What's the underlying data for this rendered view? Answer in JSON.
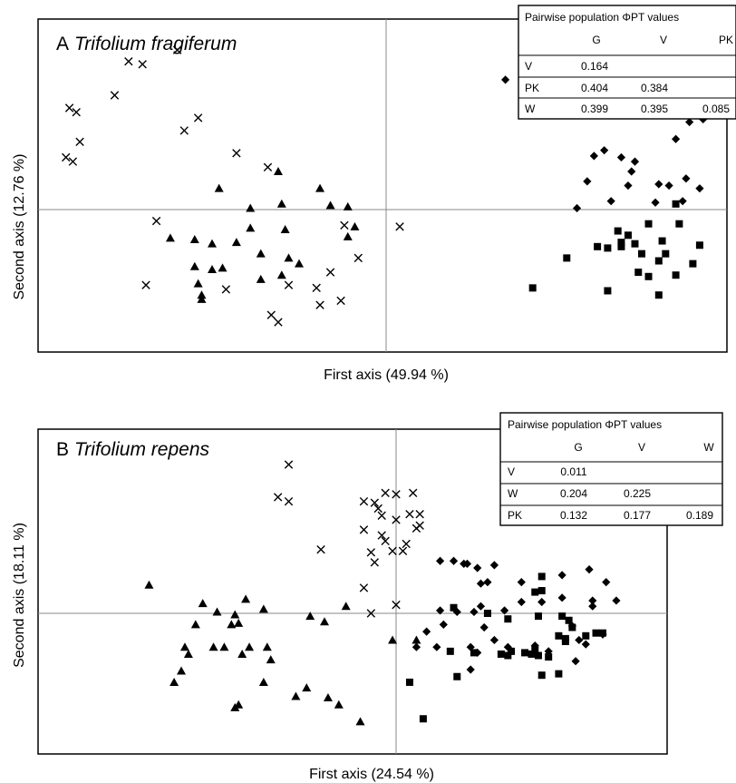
{
  "chart_data": [
    {
      "type": "scatter",
      "panel_letter": "A",
      "title": "Trifolium fragiferum",
      "xlabel": "First axis (49.94 %)",
      "ylabel": "Second axis (12.76 %)",
      "xlim": [
        -1.0,
        1.0
      ],
      "ylim": [
        -1.0,
        1.35
      ],
      "axes_cross_at_origin": true,
      "series": [
        {
          "marker": "cross",
          "points": [
            [
              -0.6,
              1.13
            ],
            [
              -0.74,
              1.05
            ],
            [
              -0.7,
              1.03
            ],
            [
              -0.78,
              0.81
            ],
            [
              -0.91,
              0.72
            ],
            [
              -0.89,
              0.69
            ],
            [
              -0.54,
              0.65
            ],
            [
              -0.58,
              0.56
            ],
            [
              -0.88,
              0.48
            ],
            [
              -0.92,
              0.37
            ],
            [
              -0.9,
              0.34
            ],
            [
              -0.43,
              0.4
            ],
            [
              -0.34,
              0.3
            ],
            [
              -0.66,
              -0.08
            ],
            [
              -0.12,
              -0.11
            ],
            [
              0.04,
              -0.12
            ],
            [
              -0.69,
              -0.53
            ],
            [
              -0.46,
              -0.56
            ],
            [
              -0.28,
              -0.53
            ],
            [
              -0.2,
              -0.55
            ],
            [
              -0.19,
              -0.67
            ],
            [
              -0.13,
              -0.64
            ],
            [
              -0.33,
              -0.74
            ],
            [
              -0.31,
              -0.79
            ],
            [
              -0.08,
              -0.34
            ],
            [
              -0.16,
              -0.44
            ]
          ]
        },
        {
          "marker": "triangle",
          "points": [
            [
              -0.31,
              0.27
            ],
            [
              -0.48,
              0.15
            ],
            [
              -0.19,
              0.15
            ],
            [
              -0.16,
              0.03
            ],
            [
              -0.39,
              0.01
            ],
            [
              -0.3,
              0.04
            ],
            [
              -0.11,
              0.02
            ],
            [
              -0.09,
              -0.12
            ],
            [
              -0.39,
              -0.13
            ],
            [
              -0.29,
              -0.14
            ],
            [
              -0.11,
              -0.19
            ],
            [
              -0.43,
              -0.23
            ],
            [
              -0.62,
              -0.2
            ],
            [
              -0.55,
              -0.21
            ],
            [
              -0.5,
              -0.24
            ],
            [
              -0.36,
              -0.31
            ],
            [
              -0.28,
              -0.34
            ],
            [
              -0.25,
              -0.38
            ],
            [
              -0.55,
              -0.4
            ],
            [
              -0.5,
              -0.42
            ],
            [
              -0.47,
              -0.41
            ],
            [
              -0.54,
              -0.52
            ],
            [
              -0.53,
              -0.63
            ],
            [
              -0.53,
              -0.6
            ],
            [
              -0.36,
              -0.49
            ],
            [
              -0.3,
              -0.46
            ]
          ]
        },
        {
          "marker": "diamond",
          "points": [
            [
              0.61,
              1.05
            ],
            [
              0.43,
              0.96
            ],
            [
              0.47,
              0.93
            ],
            [
              0.46,
              0.87
            ],
            [
              0.35,
              0.92
            ],
            [
              0.95,
              0.72
            ],
            [
              0.93,
              0.64
            ],
            [
              0.89,
              0.62
            ],
            [
              0.85,
              0.5
            ],
            [
              0.64,
              0.42
            ],
            [
              0.73,
              0.34
            ],
            [
              0.69,
              0.37
            ],
            [
              0.88,
              0.22
            ],
            [
              0.83,
              0.17
            ],
            [
              0.8,
              0.18
            ],
            [
              0.92,
              0.15
            ],
            [
              0.71,
              0.17
            ],
            [
              0.72,
              0.27
            ],
            [
              0.61,
              0.38
            ],
            [
              0.59,
              0.2
            ],
            [
              0.56,
              0.01
            ],
            [
              0.66,
              0.06
            ],
            [
              0.79,
              0.05
            ],
            [
              0.87,
              0.06
            ]
          ]
        },
        {
          "marker": "square",
          "points": [
            [
              0.86,
              -0.1
            ],
            [
              0.77,
              -0.1
            ],
            [
              0.68,
              -0.15
            ],
            [
              0.71,
              -0.18
            ],
            [
              0.73,
              -0.24
            ],
            [
              0.81,
              -0.22
            ],
            [
              0.65,
              -0.27
            ],
            [
              0.69,
              -0.26
            ],
            [
              0.75,
              -0.31
            ],
            [
              0.82,
              -0.31
            ],
            [
              0.8,
              -0.36
            ],
            [
              0.9,
              -0.38
            ],
            [
              0.92,
              -0.25
            ],
            [
              0.74,
              -0.44
            ],
            [
              0.77,
              -0.47
            ],
            [
              0.85,
              -0.46
            ],
            [
              0.8,
              -0.6
            ],
            [
              0.65,
              -0.57
            ],
            [
              0.53,
              -0.34
            ],
            [
              0.43,
              -0.55
            ],
            [
              0.85,
              0.04
            ],
            [
              0.69,
              -0.23
            ],
            [
              0.62,
              -0.26
            ]
          ]
        }
      ],
      "table": {
        "title": "Pairwise population ΦPT values",
        "columns": [
          "G",
          "V",
          "PK"
        ],
        "rows": [
          {
            "label": "V",
            "values": [
              "0.164",
              "",
              ""
            ]
          },
          {
            "label": "PK",
            "values": [
              "0.404",
              "0.384",
              ""
            ]
          },
          {
            "label": "W",
            "values": [
              "0.399",
              "0.395",
              "0.085"
            ]
          }
        ]
      }
    },
    {
      "type": "scatter",
      "panel_letter": "B",
      "title": "Trifolium repens",
      "xlabel": "First axis (24.54 %)",
      "ylabel": "Second axis (18.11 %)",
      "xlim": [
        -1.0,
        0.8
      ],
      "ylim": [
        -1.0,
        1.3
      ],
      "axes_cross_at_origin": true,
      "series": [
        {
          "marker": "cross",
          "points": [
            [
              -0.3,
              1.05
            ],
            [
              -0.33,
              0.82
            ],
            [
              -0.3,
              0.79
            ],
            [
              -0.09,
              0.79
            ],
            [
              -0.06,
              0.78
            ],
            [
              -0.05,
              0.74
            ],
            [
              -0.04,
              0.69
            ],
            [
              -0.03,
              0.85
            ],
            [
              0.0,
              0.84
            ],
            [
              0.05,
              0.85
            ],
            [
              0.0,
              0.66
            ],
            [
              0.04,
              0.7
            ],
            [
              0.07,
              0.7
            ],
            [
              0.06,
              0.6
            ],
            [
              -0.04,
              0.55
            ],
            [
              -0.09,
              0.59
            ],
            [
              -0.03,
              0.51
            ],
            [
              -0.01,
              0.44
            ],
            [
              0.02,
              0.44
            ],
            [
              0.03,
              0.49
            ],
            [
              -0.07,
              0.43
            ],
            [
              -0.21,
              0.45
            ],
            [
              -0.06,
              0.36
            ],
            [
              0.0,
              0.06
            ],
            [
              0.07,
              0.62
            ],
            [
              -0.09,
              0.18
            ],
            [
              -0.07,
              0.0
            ]
          ]
        },
        {
          "marker": "triangle",
          "points": [
            [
              -0.69,
              0.2
            ],
            [
              -0.54,
              0.07
            ],
            [
              -0.42,
              0.1
            ],
            [
              -0.5,
              0.01
            ],
            [
              -0.37,
              0.03
            ],
            [
              -0.45,
              -0.01
            ],
            [
              -0.44,
              -0.07
            ],
            [
              -0.46,
              -0.08
            ],
            [
              -0.56,
              -0.08
            ],
            [
              -0.59,
              -0.24
            ],
            [
              -0.58,
              -0.29
            ],
            [
              -0.51,
              -0.24
            ],
            [
              -0.48,
              -0.24
            ],
            [
              -0.41,
              -0.24
            ],
            [
              -0.36,
              -0.24
            ],
            [
              -0.35,
              -0.33
            ],
            [
              -0.43,
              -0.29
            ],
            [
              -0.6,
              -0.41
            ],
            [
              -0.62,
              -0.49
            ],
            [
              -0.37,
              -0.49
            ],
            [
              -0.44,
              -0.65
            ],
            [
              -0.45,
              -0.67
            ],
            [
              -0.25,
              -0.53
            ],
            [
              -0.28,
              -0.59
            ],
            [
              -0.24,
              -0.02
            ],
            [
              -0.2,
              -0.06
            ],
            [
              -0.19,
              -0.6
            ],
            [
              -0.16,
              -0.65
            ],
            [
              -0.1,
              -0.77
            ],
            [
              -0.14,
              0.05
            ],
            [
              -0.01,
              -0.19
            ],
            [
              0.06,
              -0.19
            ]
          ]
        },
        {
          "marker": "diamond",
          "points": [
            [
              0.13,
              0.37
            ],
            [
              0.17,
              0.37
            ],
            [
              0.2,
              0.35
            ],
            [
              0.21,
              0.35
            ],
            [
              0.24,
              0.32
            ],
            [
              0.27,
              0.22
            ],
            [
              0.25,
              0.21
            ],
            [
              0.29,
              0.34
            ],
            [
              0.37,
              0.22
            ],
            [
              0.49,
              0.27
            ],
            [
              0.57,
              0.31
            ],
            [
              0.62,
              0.22
            ],
            [
              0.58,
              0.09
            ],
            [
              0.58,
              0.05
            ],
            [
              0.49,
              0.11
            ],
            [
              0.43,
              0.08
            ],
            [
              0.37,
              0.08
            ],
            [
              0.32,
              0.02
            ],
            [
              0.25,
              0.05
            ],
            [
              0.23,
              0.01
            ],
            [
              0.18,
              0.01
            ],
            [
              0.13,
              0.02
            ],
            [
              0.14,
              -0.08
            ],
            [
              0.26,
              -0.1
            ],
            [
              0.29,
              -0.19
            ],
            [
              0.22,
              -0.24
            ],
            [
              0.12,
              -0.24
            ],
            [
              0.06,
              -0.24
            ],
            [
              0.09,
              -0.13
            ],
            [
              0.24,
              -0.28
            ],
            [
              0.22,
              -0.4
            ],
            [
              0.33,
              -0.24
            ],
            [
              0.41,
              -0.23
            ],
            [
              0.45,
              -0.27
            ],
            [
              0.53,
              -0.34
            ],
            [
              0.54,
              -0.19
            ],
            [
              0.52,
              -0.09
            ],
            [
              0.61,
              -0.15
            ],
            [
              0.65,
              0.09
            ],
            [
              0.56,
              -0.22
            ]
          ]
        },
        {
          "marker": "square",
          "points": [
            [
              0.43,
              0.26
            ],
            [
              0.43,
              0.16
            ],
            [
              0.41,
              0.15
            ],
            [
              0.17,
              0.04
            ],
            [
              0.27,
              0.0
            ],
            [
              0.33,
              -0.04
            ],
            [
              0.42,
              -0.02
            ],
            [
              0.49,
              -0.02
            ],
            [
              0.52,
              -0.1
            ],
            [
              0.48,
              -0.16
            ],
            [
              0.5,
              -0.18
            ],
            [
              0.56,
              -0.16
            ],
            [
              0.59,
              -0.14
            ],
            [
              0.61,
              -0.14
            ],
            [
              0.5,
              -0.2
            ],
            [
              0.51,
              -0.05
            ],
            [
              0.41,
              -0.26
            ],
            [
              0.38,
              -0.28
            ],
            [
              0.33,
              -0.3
            ],
            [
              0.34,
              -0.27
            ],
            [
              0.31,
              -0.29
            ],
            [
              0.23,
              -0.28
            ],
            [
              0.16,
              -0.27
            ],
            [
              0.4,
              -0.29
            ],
            [
              0.42,
              -0.3
            ],
            [
              0.45,
              -0.31
            ],
            [
              0.43,
              -0.44
            ],
            [
              0.48,
              -0.43
            ],
            [
              0.18,
              -0.45
            ],
            [
              0.04,
              -0.49
            ],
            [
              0.08,
              -0.75
            ]
          ]
        }
      ],
      "table": {
        "title": "Pairwise population ΦPT values",
        "columns": [
          "G",
          "V",
          "W"
        ],
        "rows": [
          {
            "label": "V",
            "values": [
              "0.011",
              "",
              ""
            ]
          },
          {
            "label": "W",
            "values": [
              "0.204",
              "0.225",
              ""
            ]
          },
          {
            "label": "PK",
            "values": [
              "0.132",
              "0.177",
              "0.189"
            ]
          }
        ]
      }
    }
  ]
}
